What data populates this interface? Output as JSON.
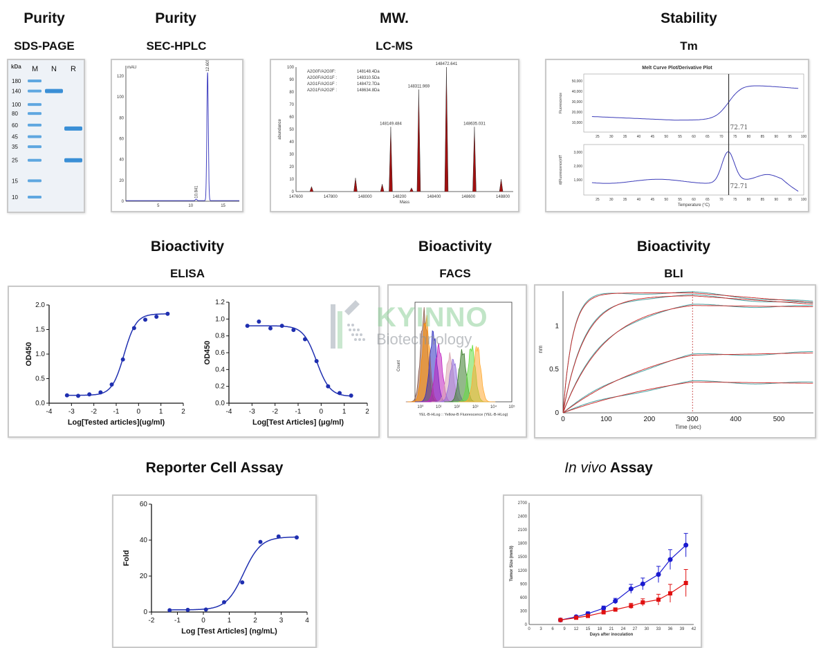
{
  "headers": {
    "purity1": "Purity",
    "sds": "SDS-PAGE",
    "purity2": "Purity",
    "sec": "SEC-HPLC",
    "mw": "MW.",
    "lcms": "LC-MS",
    "stability": "Stability",
    "tm": "Tm",
    "bio1": "Bioactivity",
    "elisa": "ELISA",
    "bio2": "Bioactivity",
    "facs": "FACS",
    "bio3": "Bioactivity",
    "bli": "BLI",
    "reporter": "Reporter Cell Assay",
    "invivo_italic": "In vivo",
    "invivo_rest": " Assay"
  },
  "watermark": {
    "brand": "KYINNO",
    "sub": "Biotechnology"
  },
  "colors": {
    "blue": "#1f2fb0",
    "red": "#e02020",
    "gel_blue": "#3a8fd6",
    "ms_red": "#a01010"
  },
  "chart_data": [
    {
      "id": "sds_page",
      "type": "gel",
      "lanes": [
        "M",
        "N",
        "R"
      ],
      "unit_label": "kDa",
      "marker_kda": [
        180,
        140,
        100,
        80,
        60,
        45,
        35,
        25,
        15,
        10
      ],
      "bands": [
        {
          "lane": "N",
          "kda": 140
        },
        {
          "lane": "R",
          "kda": 55
        },
        {
          "lane": "R",
          "kda": 25
        }
      ]
    },
    {
      "id": "sec_hplc",
      "type": "line",
      "ylabel": "mAU",
      "xlim": [
        0,
        17.5
      ],
      "ylim": [
        0,
        130
      ],
      "xticks": [
        5,
        10,
        15
      ],
      "yticks": [
        0,
        20,
        40,
        60,
        80,
        100,
        120
      ],
      "peaks": [
        {
          "x": 10.841,
          "height": 1.5,
          "label": "10.841"
        },
        {
          "x": 12.605,
          "height": 123,
          "label": "12.605"
        }
      ]
    },
    {
      "id": "lc_ms",
      "type": "bar",
      "xlabel": "Mass",
      "ylabel": "abundance",
      "xlim": [
        147600,
        148860
      ],
      "ylim": [
        0,
        100
      ],
      "xticks": [
        147600,
        147800,
        148000,
        148200,
        148400,
        148600,
        148800
      ],
      "yticks": [
        0,
        10,
        20,
        30,
        40,
        50,
        60,
        70,
        80,
        90,
        100
      ],
      "legend": [
        {
          "name": "A2G0F/A2G0F:",
          "value": "148148.4Da"
        },
        {
          "name": "A2G0F/A2G1F :",
          "value": "148310.5Da"
        },
        {
          "name": "A2G1F/A2G1F :",
          "value": "148472.7Da"
        },
        {
          "name": "A2G1F/A2G2F :",
          "value": "148634.8Da"
        }
      ],
      "peaks": [
        {
          "x": 147690,
          "y": 4
        },
        {
          "x": 147945,
          "y": 11
        },
        {
          "x": 148100,
          "y": 6
        },
        {
          "x": 148149.484,
          "y": 52,
          "label": "148149.484"
        },
        {
          "x": 148270,
          "y": 3
        },
        {
          "x": 148311.969,
          "y": 82,
          "label": "148311.969"
        },
        {
          "x": 148472.641,
          "y": 100,
          "label": "148472.641"
        },
        {
          "x": 148635.031,
          "y": 52,
          "label": "148635.031"
        },
        {
          "x": 148790,
          "y": 10
        }
      ]
    },
    {
      "id": "melt_curve",
      "type": "line",
      "title": "Melt Curve Plot/Derivative Plot",
      "tm_label": "72.71",
      "top_ylabel": "Fluorescence",
      "bottom_ylabel": "d(Fluorescence)/dT",
      "xlabel": "Temperature (°C)",
      "xticks": [
        25,
        30,
        35,
        40,
        45,
        50,
        55,
        60,
        65,
        70,
        75,
        80,
        85,
        90,
        95,
        100
      ],
      "top_yticks": [
        "10,000",
        "20,000",
        "30,000",
        "40,000",
        "50,000"
      ],
      "bottom_yticks": [
        "1,000",
        "2,000",
        "3,000"
      ]
    },
    {
      "id": "elisa_1",
      "type": "scatter",
      "xlabel": "Log[Tested articles](ug/ml)",
      "ylabel": "OD450",
      "xlim": [
        -4,
        2
      ],
      "ylim": [
        0,
        2.0
      ],
      "xticks": [
        -4,
        -3,
        -2,
        -1,
        0,
        1,
        2
      ],
      "yticks": [
        "0.0",
        "0.5",
        "1.0",
        "1.5",
        "2.0"
      ],
      "x": [
        -3.2,
        -2.7,
        -2.2,
        -1.7,
        -1.2,
        -0.7,
        -0.2,
        0.3,
        0.8,
        1.3
      ],
      "y": [
        0.16,
        0.15,
        0.18,
        0.22,
        0.38,
        0.89,
        1.53,
        1.7,
        1.76,
        1.82
      ]
    },
    {
      "id": "elisa_2",
      "type": "scatter",
      "xlabel": "Log[Test Articles] (μg/ml)",
      "ylabel": "OD450",
      "xlim": [
        -4,
        2
      ],
      "ylim": [
        0,
        1.2
      ],
      "xticks": [
        -4,
        -3,
        -2,
        -1,
        0,
        1,
        2
      ],
      "yticks": [
        "0.0",
        "0.2",
        "0.4",
        "0.6",
        "0.8",
        "1.0",
        "1.2"
      ],
      "x": [
        -3.2,
        -2.7,
        -2.2,
        -1.7,
        -1.2,
        -0.7,
        -0.2,
        0.3,
        0.8,
        1.3
      ],
      "y": [
        0.92,
        0.97,
        0.89,
        0.92,
        0.87,
        0.76,
        0.5,
        0.2,
        0.12,
        0.09
      ]
    },
    {
      "id": "facs",
      "type": "area",
      "xlabel": "YEL-B-HLog :: Yellow-B Fluorescence (YEL-B-HLog)",
      "ylabel": "Count",
      "xticks": [
        "10⁰",
        "10¹",
        "10²",
        "10³",
        "10⁴",
        "10⁵"
      ],
      "series": [
        {
          "color": "#8b5a4a",
          "center": 0.2
        },
        {
          "color": "#ff8c00",
          "center": 0.3
        },
        {
          "color": "#2d2dbf",
          "center": 0.7
        },
        {
          "color": "#c020c0",
          "center": 1.0
        },
        {
          "color": "#d9a6b0",
          "center": 1.6
        },
        {
          "color": "#9370db",
          "center": 1.8
        },
        {
          "color": "#3a7d2a",
          "center": 2.3
        },
        {
          "color": "#66dd44",
          "center": 2.8
        },
        {
          "color": "#ffaa33",
          "center": 3.1
        }
      ]
    },
    {
      "id": "bli",
      "type": "line",
      "xlabel": "Time (sec)",
      "ylabel": "nm",
      "xlim": [
        0,
        580
      ],
      "ylim": [
        0,
        1.4
      ],
      "xticks": [
        0,
        100,
        200,
        300,
        400,
        500
      ],
      "yticks": [
        0,
        0.5,
        1
      ],
      "assoc_end": 300,
      "curves": [
        {
          "plateau": 1.38,
          "k": 0.045,
          "end": 1.27
        },
        {
          "plateau": 1.35,
          "k": 0.02,
          "end": 1.25
        },
        {
          "plateau": 1.3,
          "k": 0.01,
          "end": 1.22
        },
        {
          "plateau": 0.95,
          "k": 0.004,
          "end": 0.69
        },
        {
          "plateau": 0.6,
          "k": 0.003,
          "end": 0.34
        }
      ]
    },
    {
      "id": "reporter",
      "type": "scatter",
      "xlabel": "Log [Test Articles] (ng/mL)",
      "ylabel": "Fold",
      "xlim": [
        -2,
        4
      ],
      "ylim": [
        0,
        60
      ],
      "xticks": [
        -2,
        -1,
        0,
        1,
        2,
        3,
        4
      ],
      "yticks": [
        0,
        20,
        40,
        60
      ],
      "x": [
        -1.3,
        -0.6,
        0.1,
        0.8,
        1.5,
        2.2,
        2.9,
        3.6
      ],
      "y": [
        1,
        1.2,
        1.4,
        5.5,
        16.5,
        39,
        42,
        41.5
      ]
    },
    {
      "id": "invivo",
      "type": "line",
      "xlabel": "Days after inoculation",
      "ylabel": "Tumor Size (mm3)",
      "xlim": [
        0,
        42
      ],
      "ylim": [
        0,
        2700
      ],
      "xticks": [
        0,
        3,
        6,
        9,
        12,
        15,
        18,
        21,
        24,
        27,
        30,
        33,
        36,
        39,
        42
      ],
      "yticks": [
        0,
        300,
        600,
        900,
        1200,
        1500,
        1800,
        2100,
        2400,
        2700
      ],
      "x": [
        8,
        12,
        15,
        19,
        22,
        26,
        29,
        33,
        36,
        40
      ],
      "series": [
        {
          "color": "#1a1ad0",
          "values": [
            100,
            170,
            240,
            360,
            520,
            790,
            900,
            1110,
            1440,
            1760
          ],
          "err": [
            20,
            30,
            40,
            50,
            60,
            100,
            130,
            180,
            220,
            260
          ]
        },
        {
          "color": "#e01010",
          "values": [
            100,
            150,
            190,
            270,
            330,
            410,
            490,
            550,
            690,
            920
          ],
          "err": [
            20,
            20,
            30,
            40,
            40,
            60,
            80,
            120,
            200,
            300
          ]
        }
      ]
    }
  ]
}
